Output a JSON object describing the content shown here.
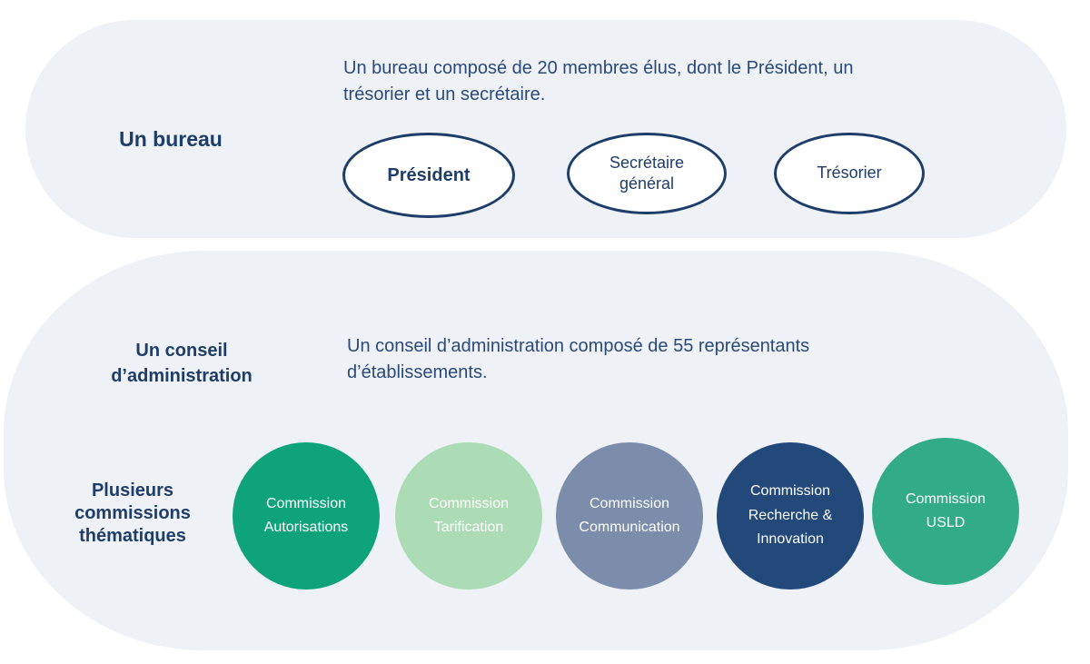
{
  "bureau": {
    "heading": "Un bureau",
    "description": "Un bureau composé de 20 membres élus, dont le Président, un trésorier et un secrétaire.",
    "roles": [
      {
        "label": "Président"
      },
      {
        "label": "Secrétaire\ngénéral"
      },
      {
        "label": "Trésorier"
      }
    ]
  },
  "conseil": {
    "heading": "Un conseil\nd’administration",
    "description": "Un conseil d’administration composé de 55 représentants d’établissements."
  },
  "commissions": {
    "heading": "Plusieurs\ncommissions\nthématiques",
    "items": [
      {
        "label": "Commission\nAutorisations",
        "color": "#0fa37a"
      },
      {
        "label": "Commission\nTarification",
        "color": "#abdcb5"
      },
      {
        "label": "Commission\nCommunication",
        "color": "#7b8dab"
      },
      {
        "label": "Commission\nRecherche &\nInnovation",
        "color": "#22497a"
      },
      {
        "label": "Commission\nUSLD",
        "color": "#32ac87"
      }
    ]
  },
  "colors": {
    "panel_background": "#eef1f5",
    "primary_navy": "#1f3d69",
    "text_blue": "#2b4a7a"
  }
}
